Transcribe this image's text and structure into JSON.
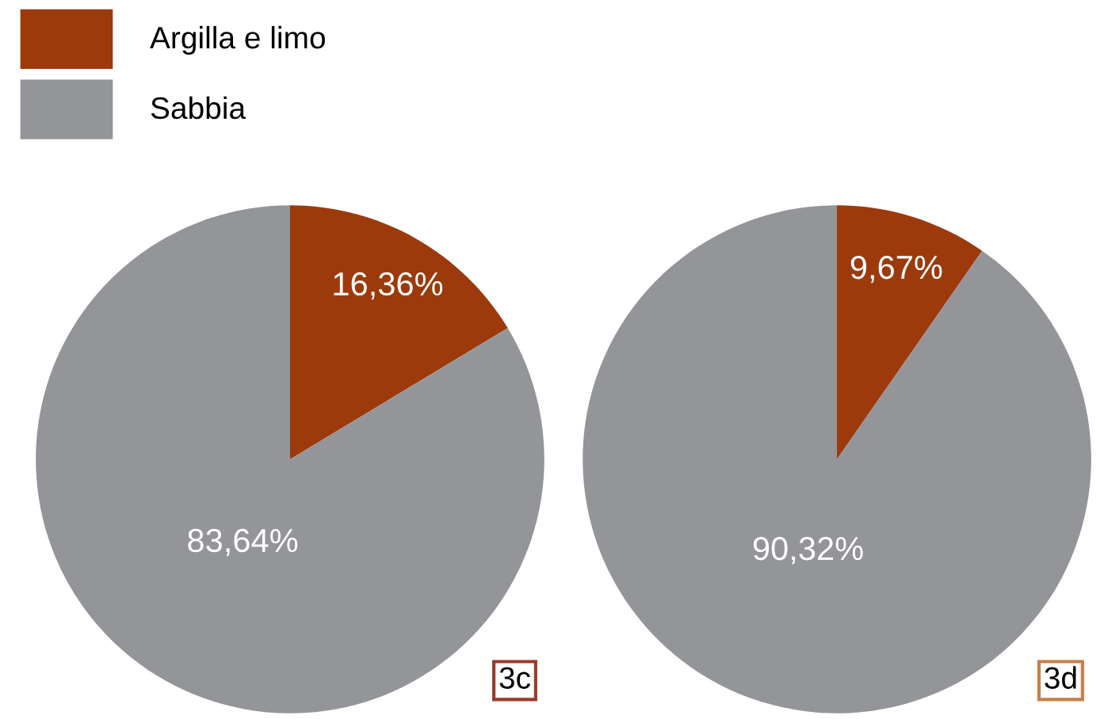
{
  "chart_data": [
    {
      "type": "pie",
      "categories": [
        "Argilla e limo",
        "Sabbia"
      ],
      "values": [
        16.36,
        83.64
      ],
      "colors": [
        "#9c3a0b",
        "#949599"
      ],
      "value_labels": [
        "16,36%",
        "83,64%"
      ],
      "legend": "top left",
      "annotations": [
        "3c"
      ]
    },
    {
      "type": "pie",
      "values": [
        9.67,
        90.32
      ],
      "colors": [
        "#9c3a0b",
        "#949599"
      ],
      "value_labels": [
        "9,67%",
        "90,32%"
      ],
      "annotations": [
        "3d"
      ]
    }
  ]
}
